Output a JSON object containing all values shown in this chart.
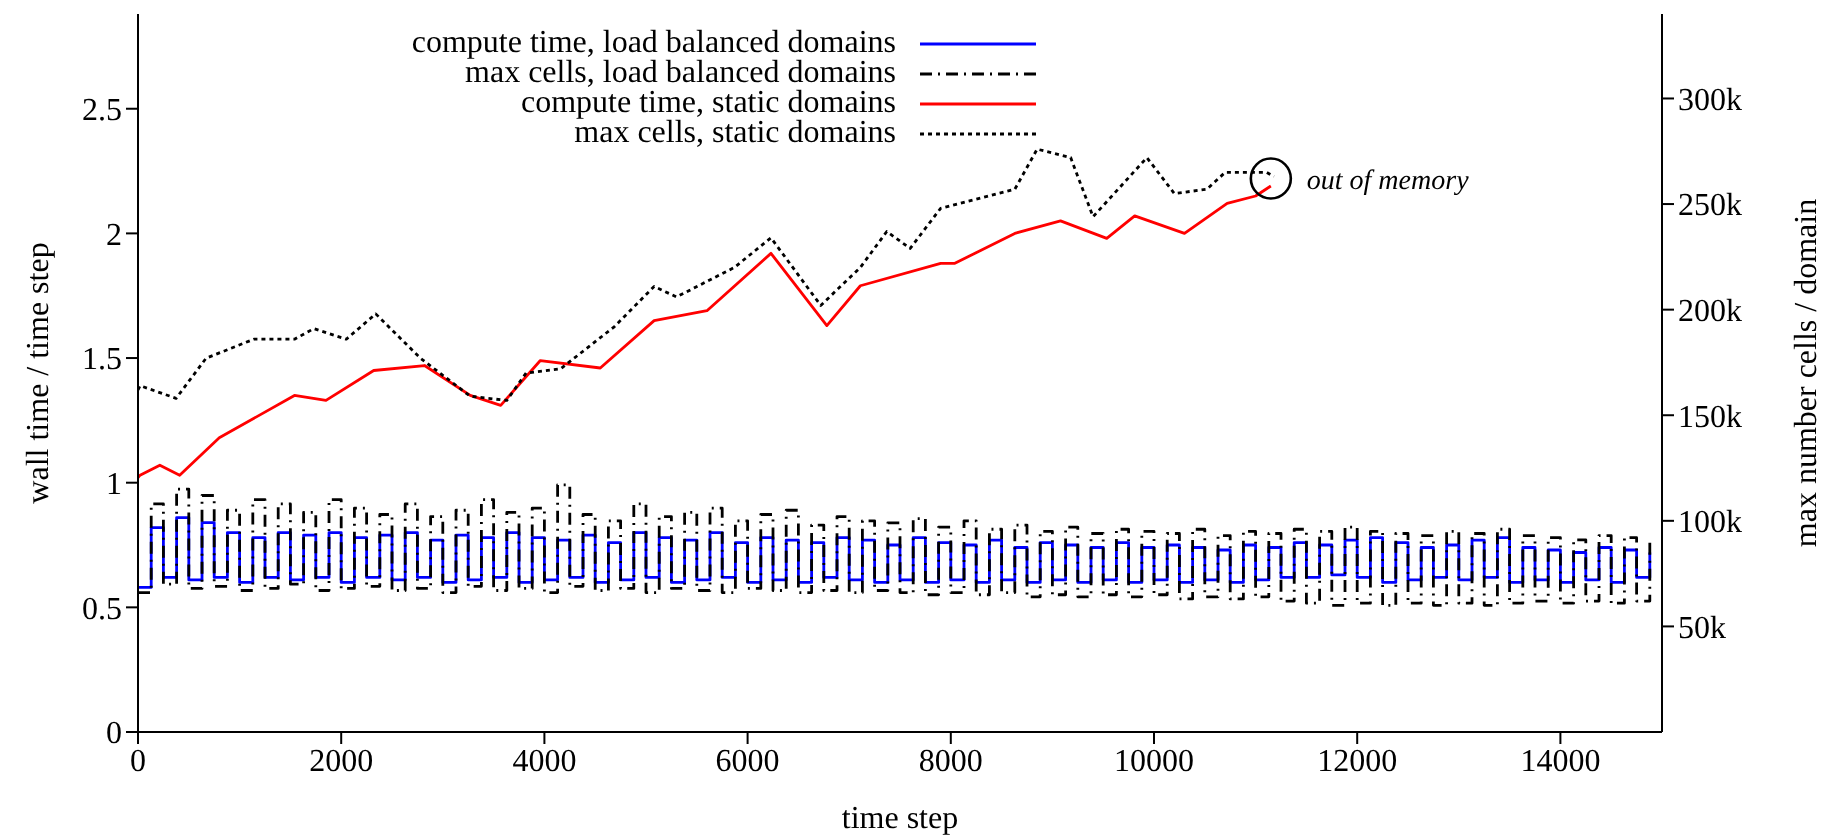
{
  "chart_data": {
    "type": "line",
    "xlabel": "time step",
    "ylabel": "wall time / time step",
    "y2label": "max number cells / domain",
    "xlim": [
      0,
      15000
    ],
    "xticks": [
      0,
      2000,
      4000,
      6000,
      8000,
      10000,
      12000,
      14000
    ],
    "ylim": [
      0,
      2.88
    ],
    "yticks": [
      0,
      0.5,
      1,
      1.5,
      2,
      2.5
    ],
    "y2lim": [
      0,
      340000
    ],
    "y2ticks": [
      {
        "value": 50000,
        "label": "50k"
      },
      {
        "value": 100000,
        "label": "100k"
      },
      {
        "value": 150000,
        "label": "150k"
      },
      {
        "value": 200000,
        "label": "200k"
      },
      {
        "value": 250000,
        "label": "250k"
      },
      {
        "value": 300000,
        "label": "300k"
      }
    ],
    "grid": false,
    "legend": "top left",
    "marker": "none",
    "annotations": [
      {
        "text": "out of memory",
        "x": 11150,
        "y": 2.22
      }
    ],
    "series": [
      {
        "name": "compute time, load balanced domains",
        "color": "#0000ff",
        "type": "step",
        "line_style": "solid",
        "x": [
          0,
          130,
          250,
          380,
          500,
          630,
          750,
          880,
          1000,
          1130,
          1250,
          1380,
          1500,
          1630,
          1750,
          1880,
          2000,
          2130,
          2250,
          2380,
          2500,
          2630,
          2750,
          2880,
          3000,
          3130,
          3250,
          3380,
          3500,
          3630,
          3750,
          3880,
          4000,
          4130,
          4250,
          4380,
          4500,
          4630,
          4750,
          4880,
          5000,
          5130,
          5250,
          5380,
          5500,
          5630,
          5750,
          5880,
          6000,
          6130,
          6250,
          6380,
          6500,
          6630,
          6750,
          6880,
          7000,
          7130,
          7250,
          7380,
          7500,
          7630,
          7750,
          7880,
          8000,
          8130,
          8250,
          8380,
          8500,
          8630,
          8750,
          8880,
          9000,
          9130,
          9250,
          9380,
          9500,
          9630,
          9750,
          9880,
          10000,
          10130,
          10250,
          10380,
          10500,
          10630,
          10750,
          10880,
          11000,
          11130,
          11250,
          11380,
          11500,
          11630,
          11750,
          11880,
          12000,
          12130,
          12250,
          12380,
          12500,
          12630,
          12750,
          12880,
          13000,
          13130,
          13250,
          13380,
          13500,
          13630,
          13750,
          13880,
          14000,
          14130,
          14250,
          14380,
          14500,
          14630,
          14750,
          14880
        ],
        "values": [
          0.58,
          0.82,
          0.62,
          0.86,
          0.61,
          0.84,
          0.62,
          0.8,
          0.6,
          0.78,
          0.62,
          0.8,
          0.61,
          0.79,
          0.62,
          0.8,
          0.6,
          0.78,
          0.62,
          0.79,
          0.61,
          0.8,
          0.62,
          0.77,
          0.6,
          0.79,
          0.61,
          0.78,
          0.62,
          0.8,
          0.6,
          0.78,
          0.61,
          0.77,
          0.62,
          0.79,
          0.6,
          0.76,
          0.61,
          0.8,
          0.62,
          0.78,
          0.6,
          0.77,
          0.61,
          0.8,
          0.62,
          0.76,
          0.6,
          0.78,
          0.61,
          0.77,
          0.6,
          0.76,
          0.62,
          0.78,
          0.61,
          0.77,
          0.6,
          0.75,
          0.61,
          0.78,
          0.6,
          0.76,
          0.61,
          0.75,
          0.6,
          0.77,
          0.61,
          0.74,
          0.6,
          0.76,
          0.61,
          0.75,
          0.6,
          0.74,
          0.61,
          0.76,
          0.6,
          0.74,
          0.61,
          0.75,
          0.6,
          0.74,
          0.61,
          0.73,
          0.6,
          0.75,
          0.61,
          0.74,
          0.62,
          0.76,
          0.62,
          0.75,
          0.63,
          0.77,
          0.62,
          0.78,
          0.6,
          0.76,
          0.61,
          0.74,
          0.62,
          0.75,
          0.61,
          0.77,
          0.62,
          0.78,
          0.6,
          0.74,
          0.61,
          0.73,
          0.6,
          0.72,
          0.61,
          0.74,
          0.6,
          0.73,
          0.62,
          0.72
        ]
      },
      {
        "name": "max cells, load balanced domains",
        "color": "#000000",
        "type": "step",
        "line_style": "dashed",
        "axis": "y2",
        "x": [
          0,
          130,
          250,
          380,
          500,
          630,
          750,
          880,
          1000,
          1130,
          1250,
          1380,
          1500,
          1630,
          1750,
          1880,
          2000,
          2130,
          2250,
          2380,
          2500,
          2630,
          2750,
          2880,
          3000,
          3130,
          3250,
          3380,
          3500,
          3630,
          3750,
          3880,
          4000,
          4130,
          4250,
          4380,
          4500,
          4630,
          4750,
          4880,
          5000,
          5130,
          5250,
          5380,
          5500,
          5630,
          5750,
          5880,
          6000,
          6130,
          6250,
          6380,
          6500,
          6630,
          6750,
          6880,
          7000,
          7130,
          7250,
          7380,
          7500,
          7630,
          7750,
          7880,
          8000,
          8130,
          8250,
          8380,
          8500,
          8630,
          8750,
          8880,
          9000,
          9130,
          9250,
          9380,
          9500,
          9630,
          9750,
          9880,
          10000,
          10130,
          10250,
          10380,
          10500,
          10630,
          10750,
          10880,
          11000,
          11130,
          11250,
          11380,
          11500,
          11630,
          11750,
          11880,
          12000,
          12130,
          12250,
          12380,
          12500,
          12630,
          12750,
          12880,
          13000,
          13130,
          13250,
          13380,
          13500,
          13630,
          13750,
          13880,
          14000,
          14130,
          14250,
          14380,
          14500,
          14630,
          14750,
          14880
        ],
        "values": [
          66000,
          108000,
          70000,
          115000,
          68000,
          112000,
          69000,
          105000,
          67000,
          110000,
          68000,
          108000,
          70000,
          104000,
          67000,
          110000,
          68000,
          106000,
          69000,
          103000,
          67000,
          108000,
          68000,
          102000,
          66000,
          105000,
          69000,
          110000,
          67000,
          104000,
          68000,
          106000,
          66000,
          117000,
          69000,
          103000,
          67000,
          100000,
          68000,
          108000,
          66000,
          102000,
          68000,
          104000,
          67000,
          106000,
          66000,
          100000,
          68000,
          103000,
          67000,
          105000,
          66000,
          98000,
          67000,
          102000,
          66000,
          100000,
          67000,
          99000,
          66000,
          101000,
          65000,
          97000,
          66000,
          100000,
          65000,
          96000,
          66000,
          98000,
          64000,
          95000,
          65000,
          97000,
          64000,
          94000,
          65000,
          96000,
          64000,
          95000,
          65000,
          94000,
          63000,
          96000,
          64000,
          93000,
          63000,
          95000,
          64000,
          94000,
          62000,
          96000,
          61000,
          95000,
          60000,
          97000,
          61000,
          95000,
          60000,
          94000,
          61000,
          93000,
          60000,
          95000,
          61000,
          94000,
          60000,
          96000,
          61000,
          93000,
          62000,
          92000,
          61000,
          91000,
          62000,
          93000,
          61000,
          92000,
          62000,
          90000
        ]
      },
      {
        "name": "compute time, static domains",
        "color": "#ff0000",
        "type": "line",
        "line_style": "solid",
        "x": [
          0,
          20,
          215,
          410,
          800,
          1540,
          1850,
          2320,
          2820,
          3270,
          3570,
          3960,
          4550,
          5080,
          5600,
          6230,
          6780,
          7110,
          7900,
          8040,
          8630,
          9080,
          9535,
          9810,
          10300,
          10720,
          11000,
          11150
        ],
        "values": [
          1.02,
          1.03,
          1.07,
          1.03,
          1.18,
          1.35,
          1.33,
          1.45,
          1.47,
          1.35,
          1.31,
          1.49,
          1.46,
          1.65,
          1.69,
          1.92,
          1.63,
          1.79,
          1.88,
          1.88,
          2.0,
          2.05,
          1.98,
          2.07,
          2.0,
          2.12,
          2.15,
          2.19
        ]
      },
      {
        "name": "max cells, static domains",
        "color": "#000000",
        "type": "line",
        "line_style": "dotted",
        "axis": "y2",
        "x": [
          0,
          20,
          375,
          670,
          1140,
          1540,
          1730,
          2050,
          2340,
          2780,
          3270,
          3630,
          3820,
          4160,
          4690,
          5080,
          5300,
          5870,
          6230,
          6720,
          7110,
          7370,
          7600,
          7900,
          8630,
          8850,
          9180,
          9400,
          9930,
          10200,
          10520,
          10700,
          11110,
          11180
        ],
        "values": [
          162000,
          164000,
          158000,
          177000,
          186000,
          186000,
          191000,
          186000,
          198000,
          177000,
          159000,
          157000,
          170000,
          172000,
          192000,
          211000,
          206000,
          220000,
          234000,
          202000,
          220000,
          237000,
          229000,
          248000,
          257000,
          276000,
          272000,
          244000,
          272000,
          255000,
          257000,
          265000,
          265000,
          263000
        ]
      }
    ]
  }
}
